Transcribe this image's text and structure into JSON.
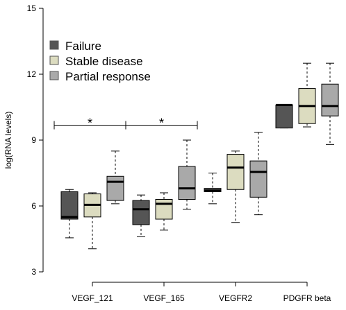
{
  "chart_data": {
    "type": "boxplot",
    "ylabel": "log(RNA levels)",
    "ylim": [
      3,
      15
    ],
    "yticks": [
      3,
      6,
      9,
      12,
      15
    ],
    "categories": [
      "VEGF_121",
      "VEGF_165",
      "VEGFR2",
      "PDGFR beta"
    ],
    "legend": {
      "placement": "top-left",
      "entries": [
        {
          "name": "Failure",
          "color": "#555555"
        },
        {
          "name": "Stable disease",
          "color": "#dcdcc0"
        },
        {
          "name": "Partial response",
          "color": "#a9a9a9"
        }
      ]
    },
    "series": [
      {
        "name": "Failure",
        "color": "#555555",
        "boxes": [
          {
            "min": 4.55,
            "q1": 5.4,
            "median": 5.5,
            "q3": 6.65,
            "max": 6.75
          },
          {
            "min": 4.6,
            "q1": 5.15,
            "median": 5.85,
            "q3": 6.25,
            "max": 6.5
          },
          {
            "min": 6.1,
            "q1": 6.65,
            "median": 6.7,
            "q3": 6.8,
            "max": 7.5
          },
          {
            "min": 9.55,
            "q1": 9.55,
            "median": 10.6,
            "q3": 10.6,
            "max": 10.6
          }
        ]
      },
      {
        "name": "Stable disease",
        "color": "#dcdcc0",
        "boxes": [
          {
            "min": 4.05,
            "q1": 5.5,
            "median": 6.05,
            "q3": 6.55,
            "max": 6.6
          },
          {
            "min": 4.9,
            "q1": 5.4,
            "median": 6.1,
            "q3": 6.3,
            "max": 6.6
          },
          {
            "min": 5.25,
            "q1": 6.75,
            "median": 7.75,
            "q3": 8.35,
            "max": 8.5
          },
          {
            "min": 9.6,
            "q1": 9.75,
            "median": 10.55,
            "q3": 11.35,
            "max": 12.5
          }
        ]
      },
      {
        "name": "Partial response",
        "color": "#a9a9a9",
        "boxes": [
          {
            "min": 6.1,
            "q1": 6.25,
            "median": 7.1,
            "q3": 7.35,
            "max": 8.5
          },
          {
            "min": 5.85,
            "q1": 6.3,
            "median": 6.8,
            "q3": 7.8,
            "max": 9.0
          },
          {
            "min": 5.6,
            "q1": 6.4,
            "median": 7.55,
            "q3": 8.05,
            "max": 9.35
          },
          {
            "min": 8.8,
            "q1": 10.1,
            "median": 10.55,
            "q3": 11.55,
            "max": 12.5
          }
        ]
      }
    ],
    "annotations": [
      {
        "text": "*",
        "from_category": "VEGF_121",
        "to_category": "VEGF_165",
        "y": 9.3
      },
      {
        "text": "*",
        "from_category": "VEGF_165",
        "to_category": "VEGFR2",
        "y": 9.3
      }
    ]
  }
}
